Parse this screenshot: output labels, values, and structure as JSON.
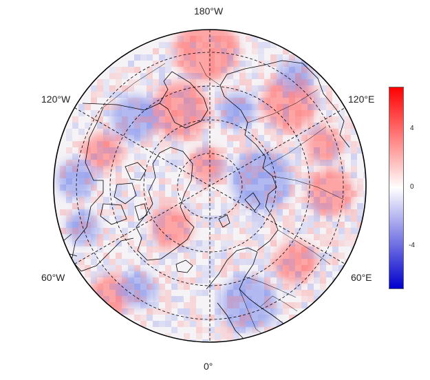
{
  "map": {
    "projection": "north-polar-stereographic",
    "longitude_labels": {
      "top": "180°W",
      "bottom": "0°",
      "upper_left": "120°W",
      "upper_right": "120°E",
      "lower_left": "60°W",
      "lower_right": "60°E"
    },
    "graticule": {
      "meridian_step_deg": 60,
      "latitude_circles": 4,
      "style": "dashed"
    },
    "colormap": {
      "name": "bwr",
      "low": "#0000cc",
      "mid": "#ffffff",
      "high": "#ff0000"
    },
    "anomaly_pattern": [
      {
        "region": "alaska-bering",
        "sign": "positive"
      },
      {
        "region": "east-siberia",
        "sign": "positive"
      },
      {
        "region": "canadian-archipelago",
        "sign": "negative"
      },
      {
        "region": "kara-barents",
        "sign": "negative"
      },
      {
        "region": "scandinavia",
        "sign": "negative"
      },
      {
        "region": "north-pacific",
        "sign": "positive"
      }
    ]
  },
  "colorbar": {
    "min": -6,
    "max": 6,
    "ticks": [
      "4",
      "0",
      "-4"
    ],
    "tick_values": [
      4,
      0,
      -4
    ]
  }
}
